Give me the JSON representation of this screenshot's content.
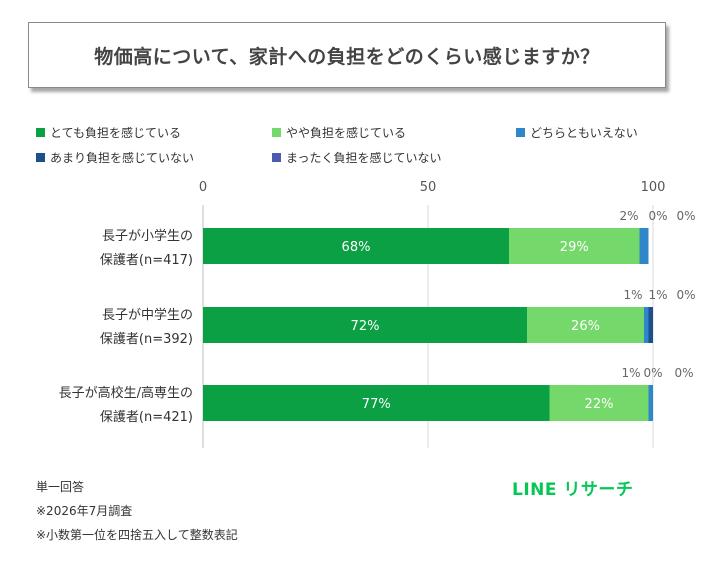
{
  "title": "物価高について、家計への負担をどのくらい感じますか？",
  "chart_data": {
    "type": "bar",
    "orientation": "horizontal",
    "stacked": true,
    "xlim": [
      0,
      100
    ],
    "ticks": [
      "0",
      "50",
      "100"
    ],
    "grid": true,
    "legend_position": "top",
    "categories": [
      [
        "長子が小学生の",
        "保護者(n=417)"
      ],
      [
        "長子が中学生の",
        "保護者(n=392)"
      ],
      [
        "長子が高校生/高専生の",
        "保護者(n=421)"
      ]
    ],
    "series": [
      {
        "name": "とても負担を感じている",
        "color": "#0aa043",
        "values": [
          68,
          72,
          77
        ],
        "labels": [
          "68%",
          "72%",
          "77%"
        ]
      },
      {
        "name": "やや負担を感じている",
        "color": "#74d86a",
        "values": [
          29,
          26,
          22
        ],
        "labels": [
          "29%",
          "26%",
          "22%"
        ]
      },
      {
        "name": "どちらともいえない",
        "color": "#2f86c8",
        "values": [
          2,
          1,
          1
        ],
        "labels": [
          "2%",
          "1%",
          "1%"
        ]
      },
      {
        "name": "あまり負担を感じていない",
        "color": "#1c4f8c",
        "values": [
          0,
          1,
          0
        ],
        "labels": [
          "0%",
          "1%",
          "0%"
        ]
      },
      {
        "name": "まったく負担を感じていない",
        "color": "#4a5bb0",
        "values": [
          0,
          0,
          0
        ],
        "labels": [
          "0%",
          "0%",
          "0%"
        ]
      }
    ]
  },
  "notes": [
    "単一回答",
    "※2026年7月調査",
    "※小数第一位を四捨五入して整数表記"
  ],
  "brand": "LINE リサーチ"
}
